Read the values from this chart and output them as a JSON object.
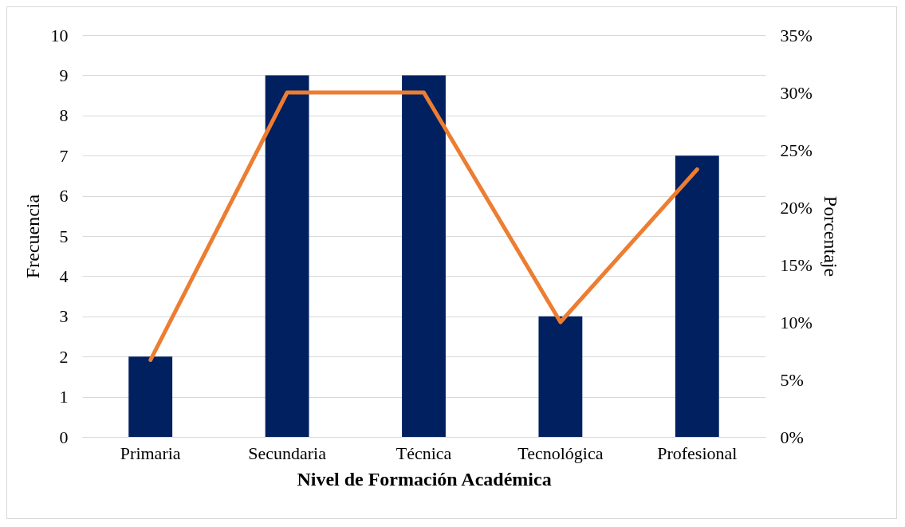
{
  "chart_data": {
    "type": "bar",
    "xlabel": "Nivel de Formación Académica",
    "ylabel": "Frecuencia",
    "y2label": "Porcentaje",
    "categories": [
      "Primaria",
      "Secundaria",
      "Técnica",
      "Tecnológica",
      "Profesional"
    ],
    "series": [
      {
        "color": "#002060",
        "values": [
          2,
          9,
          9,
          3,
          7
        ]
      },
      {
        "type": "line",
        "axis": "y2",
        "color": "#ed7d31",
        "values": [
          6.7,
          30,
          30,
          10,
          23.3
        ]
      }
    ],
    "ylim": [
      0,
      10
    ],
    "yticks": [
      0,
      1,
      2,
      3,
      4,
      5,
      6,
      7,
      8,
      9,
      10
    ],
    "y2lim": [
      0,
      35
    ],
    "y2ticks": [
      {
        "value": 0,
        "label": "0%"
      },
      {
        "value": 5,
        "label": "5%"
      },
      {
        "value": 10,
        "label": "10%"
      },
      {
        "value": 15,
        "label": "15%"
      },
      {
        "value": 20,
        "label": "20%"
      },
      {
        "value": 25,
        "label": "25%"
      },
      {
        "value": 30,
        "label": "30%"
      },
      {
        "value": 35,
        "label": "35%"
      }
    ],
    "grid": "y",
    "marker": "none",
    "line_style": "solid"
  }
}
